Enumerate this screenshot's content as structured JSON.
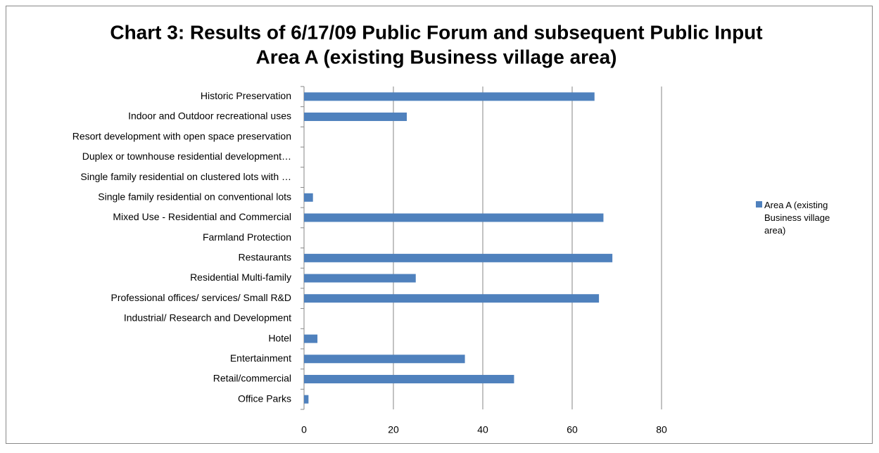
{
  "chart_data": {
    "type": "bar",
    "orientation": "horizontal",
    "title": [
      "Chart 3: Results of 6/17/09 Public Forum and subsequent Public Input",
      "Area A (existing Business village area)"
    ],
    "categories": [
      "Historic Preservation",
      "Indoor and Outdoor recreational uses",
      "Resort development with open space preservation",
      "Duplex or townhouse residential development…",
      "Single family residential on clustered lots with …",
      "Single family residential on conventional lots",
      "Mixed Use - Residential and Commercial",
      "Farmland Protection",
      "Restaurants",
      "Residential Multi-family",
      "Professional offices/ services/  Small R&D",
      "Industrial/ Research and Development",
      "Hotel",
      "Entertainment",
      "Retail/commercial",
      "Office Parks"
    ],
    "series": [
      {
        "name": "Area A (existing Business village area)",
        "color": "#4f81bd",
        "values": [
          65,
          23,
          0,
          0,
          0,
          2,
          67,
          0,
          69,
          25,
          66,
          0,
          3,
          36,
          47,
          1
        ]
      }
    ],
    "xlim": [
      0,
      80
    ],
    "xticks": [
      0,
      20,
      40,
      60,
      80
    ],
    "grid": true,
    "legend": "right"
  }
}
